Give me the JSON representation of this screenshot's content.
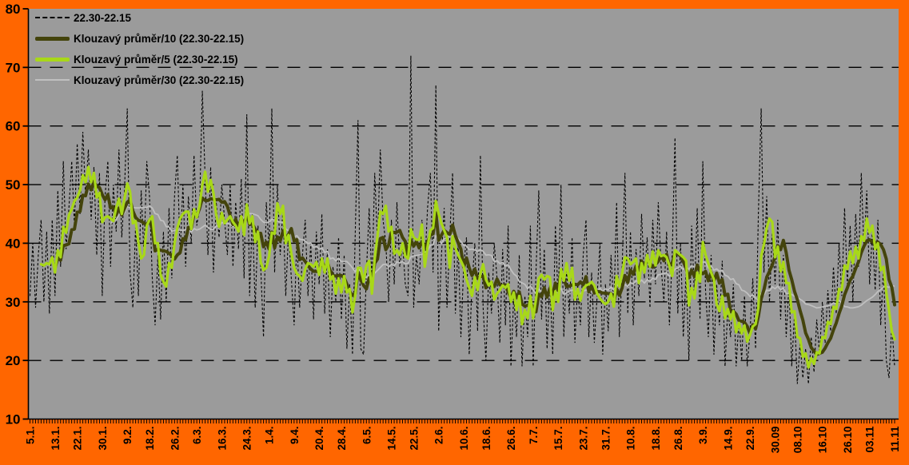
{
  "chart_data": {
    "type": "line",
    "title": "",
    "ylim": [
      10,
      80
    ],
    "y_ticks": [
      10,
      20,
      30,
      40,
      50,
      60,
      70,
      80
    ],
    "grid": "horizontal-dashed-black",
    "legend_position": "top-left-inside",
    "colors": {
      "frame": "#ff6600",
      "plot_background": "#9b9b9b",
      "axis": "#000000",
      "raw_series": "#000000",
      "ma10_series": "#44440c",
      "ma5_series": "#a8d818",
      "ma30_series": "#c0c0c0",
      "text": "#000000"
    },
    "x_tick_labels": [
      "5.1.",
      "13.1.",
      "22.1.",
      "30.1.",
      "9.2.",
      "18.2.",
      "26.2.",
      "6.3.",
      "16.3.",
      "24.3.",
      "1.4.",
      "9.4.",
      "20.4.",
      "28.4.",
      "6.5.",
      "14.5.",
      "22.5.",
      "2.6.",
      "10.6.",
      "18.6.",
      "26.6.",
      "7.7.",
      "15.7.",
      "23.7.",
      "31.7.",
      "10.8.",
      "18.8.",
      "26.8.",
      "3.9.",
      "14.9.",
      "22.9.",
      "30.09",
      "08.10",
      "16.10",
      "26.10",
      "03.11",
      "11.11"
    ],
    "series": [
      {
        "id": "raw",
        "label": "22.30-22.15",
        "style": "dashed",
        "width": 1.1,
        "color": "#000000"
      },
      {
        "id": "ma10",
        "label": "Klouzavý průměr/10 (22.30-22.15)",
        "style": "solid",
        "width": 4,
        "color": "#44440c",
        "moving_average_window": 10,
        "source": "raw"
      },
      {
        "id": "ma5",
        "label": "Klouzavý průměr/5 (22.30-22.15)",
        "style": "solid",
        "width": 3.2,
        "color": "#a8d818",
        "moving_average_window": 5,
        "source": "raw"
      },
      {
        "id": "ma30",
        "label": "Klouzavý průměr/30 (22.30-22.15)",
        "style": "solid",
        "width": 1.8,
        "color": "#c0c0c0",
        "moving_average_window": 30,
        "source": "raw"
      }
    ],
    "raw_values": [
      31,
      40,
      29,
      38,
      44,
      30,
      42,
      28,
      44,
      31,
      49,
      36,
      54,
      39,
      46,
      54,
      43,
      57,
      45,
      59,
      48,
      56,
      44,
      53,
      38,
      52,
      31,
      48,
      54,
      36,
      50,
      42,
      56,
      41,
      49,
      63,
      35,
      29,
      43,
      31,
      49,
      38,
      54,
      48,
      34,
      26,
      38,
      27,
      42,
      30,
      46,
      34,
      48,
      55,
      38,
      50,
      36,
      48,
      40,
      55,
      43,
      46,
      66,
      51,
      38,
      53,
      35,
      47,
      41,
      50,
      44,
      38,
      50,
      36,
      47,
      39,
      51,
      34,
      62,
      31,
      45,
      29,
      43,
      36,
      24,
      47,
      39,
      63,
      35,
      50,
      38,
      46,
      31,
      42,
      34,
      26,
      41,
      29,
      38,
      44,
      31,
      40,
      27,
      42,
      33,
      45,
      28,
      39,
      24,
      36,
      30,
      41,
      27,
      38,
      22,
      33,
      21,
      42,
      61,
      22,
      21,
      35,
      46,
      33,
      52,
      40,
      56,
      44,
      40,
      30,
      44,
      33,
      47,
      36,
      40,
      33,
      31,
      72,
      29,
      38,
      33,
      44,
      36,
      46,
      52,
      35,
      67,
      25,
      38,
      46,
      29,
      41,
      52,
      28,
      40,
      24,
      36,
      41,
      21,
      33,
      40,
      25,
      55,
      29,
      20,
      35,
      28,
      40,
      34,
      23,
      39,
      26,
      43,
      19,
      31,
      24,
      38,
      19,
      31,
      24,
      43,
      19,
      35,
      49,
      27,
      39,
      22,
      34,
      21,
      43,
      30,
      50,
      24,
      36,
      28,
      41,
      23,
      33,
      26,
      38,
      44,
      24,
      35,
      23,
      31,
      40,
      21,
      33,
      25,
      38,
      29,
      47,
      24,
      36,
      52,
      28,
      42,
      26,
      39,
      31,
      45,
      34,
      41,
      29,
      44,
      33,
      47,
      36,
      30,
      42,
      26,
      38,
      58,
      28,
      40,
      24,
      35,
      20,
      43,
      31,
      46,
      27,
      54,
      32,
      24,
      38,
      21,
      33,
      26,
      37,
      19,
      29,
      24,
      33,
      19,
      27,
      20,
      31,
      19,
      25,
      34,
      22,
      45,
      63,
      35,
      48,
      30,
      42,
      33,
      44,
      27,
      38,
      24,
      33,
      19,
      28,
      16,
      23,
      17,
      22,
      16,
      24,
      18,
      27,
      21,
      30,
      23,
      32,
      25,
      36,
      28,
      40,
      31,
      46,
      33,
      43,
      30,
      45,
      36,
      52,
      39,
      49,
      33,
      42,
      32,
      44,
      26,
      36,
      20,
      17,
      26,
      19
    ]
  }
}
